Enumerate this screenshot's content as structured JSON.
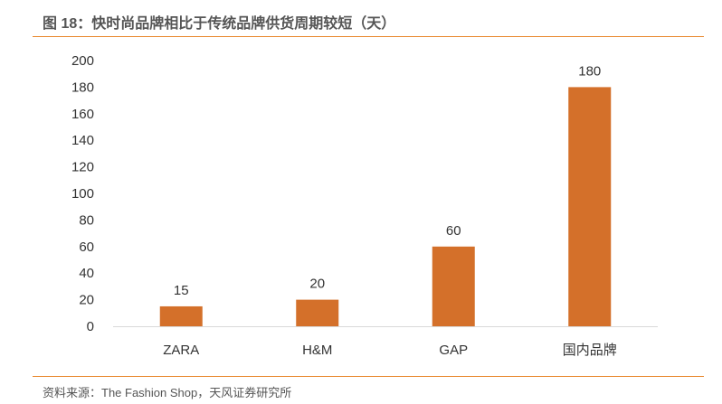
{
  "title": "图 18：快时尚品牌相比于传统品牌供货周期较短（天）",
  "source": "资料来源：The Fashion Shop，天风证券研究所",
  "colors": {
    "bar": "#D4702A",
    "rule": "#E8872C"
  },
  "chart_data": {
    "type": "bar",
    "title": "图 18：快时尚品牌相比于传统品牌供货周期较短（天）",
    "categories": [
      "ZARA",
      "H&M",
      "GAP",
      "国内品牌"
    ],
    "values": [
      15,
      20,
      60,
      180
    ],
    "ylim": [
      0,
      200
    ],
    "yticks": [
      0,
      20,
      40,
      60,
      80,
      100,
      120,
      140,
      160,
      180,
      200
    ],
    "xlabel": "",
    "ylabel": "",
    "grid": false,
    "legend": "none"
  }
}
